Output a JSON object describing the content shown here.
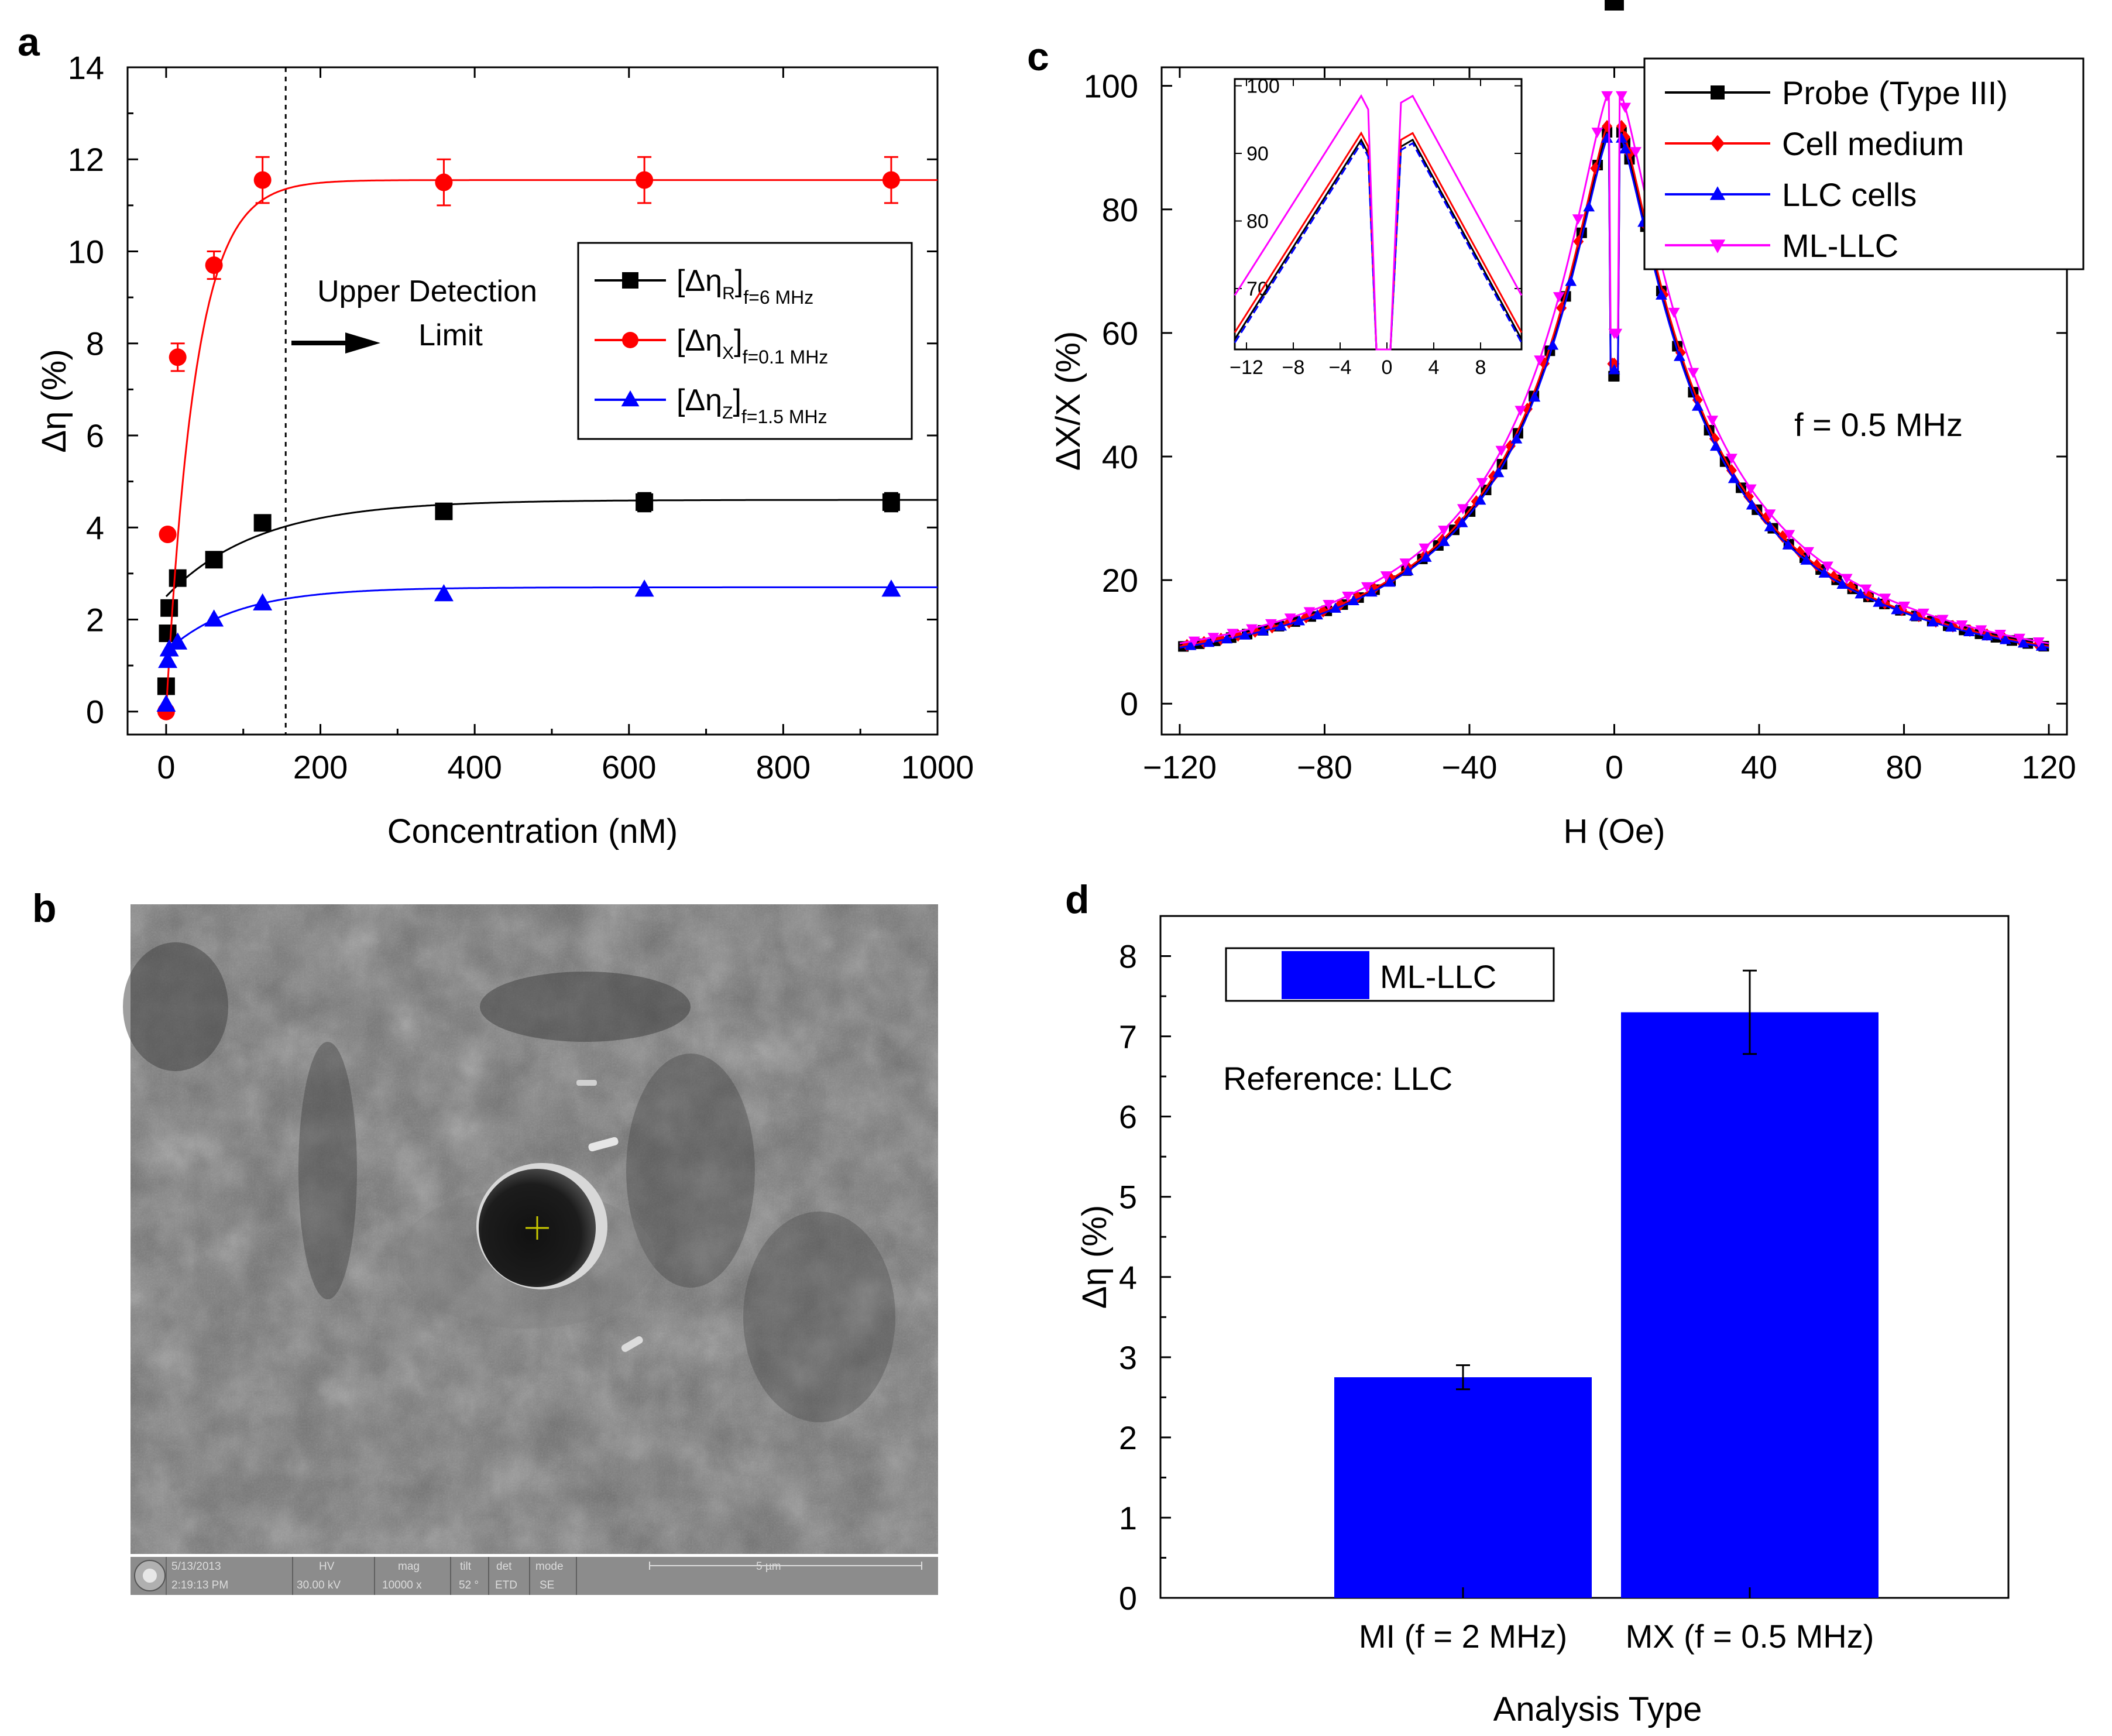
{
  "panel_labels": {
    "a": "a",
    "b": "b",
    "c": "c",
    "d": "d"
  },
  "colors": {
    "black": "#000000",
    "red": "#ff0000",
    "blue": "#0000ff",
    "magenta": "#ff00ff",
    "bar": "#0000ff"
  },
  "chart_data": [
    {
      "id": "a",
      "type": "scatter",
      "xlabel": "Concentration (nM)",
      "ylabel": "Δη (%)",
      "xlim": [
        -50,
        1000
      ],
      "ylim": [
        -0.5,
        14
      ],
      "xticks": [
        0,
        200,
        400,
        600,
        800,
        1000
      ],
      "yticks": [
        0,
        2,
        4,
        6,
        8,
        10,
        12,
        14
      ],
      "annotation": {
        "line1": "Upper Detection",
        "line2": "Limit",
        "x": 155
      },
      "legend": [
        {
          "text": "[Δη",
          "sub": "R",
          "tail": "]",
          "tailsub": "f=6 MHz"
        },
        {
          "text": "[Δη",
          "sub": "X",
          "tail": "]",
          "tailsub": "f=0.1 MHz"
        },
        {
          "text": "[Δη",
          "sub": "Z",
          "tail": "]",
          "tailsub": "f=1.5 MHz"
        }
      ],
      "series": [
        {
          "name": "[Δη_R]f=6 MHz",
          "color": "#000000",
          "marker": "square",
          "x": [
            0,
            2,
            4,
            15,
            62,
            125,
            360,
            620,
            940
          ],
          "y": [
            0.55,
            1.7,
            2.25,
            2.9,
            3.3,
            4.1,
            4.35,
            4.55,
            4.55
          ],
          "err": [
            0,
            0,
            0,
            0,
            0,
            0,
            0.15,
            0.2,
            0.2
          ],
          "fit": {
            "y0": 2.5,
            "a": 2.1,
            "k": 120
          }
        },
        {
          "name": "[Δη_X]f=0.1 MHz",
          "color": "#ff0000",
          "marker": "circle",
          "x": [
            0,
            2,
            15,
            62,
            125,
            360,
            620,
            940
          ],
          "y": [
            0,
            3.85,
            7.7,
            9.7,
            11.55,
            11.5,
            11.55,
            11.55
          ],
          "err": [
            0,
            0,
            0.3,
            0.3,
            0.5,
            0.5,
            0.5,
            0.5
          ],
          "fit": {
            "y0": 0,
            "a": 11.55,
            "k": 38
          }
        },
        {
          "name": "[Δη_Z]f=1.5 MHz",
          "color": "#0000ff",
          "marker": "triangle",
          "x": [
            0,
            2,
            4,
            15,
            62,
            125,
            360,
            620,
            940
          ],
          "y": [
            0.15,
            1.1,
            1.35,
            1.5,
            2.0,
            2.35,
            2.55,
            2.65,
            2.65
          ],
          "err": [
            0,
            0,
            0,
            0,
            0,
            0,
            0,
            0,
            0
          ],
          "fit": {
            "y0": 1.3,
            "a": 1.4,
            "k": 90
          }
        }
      ]
    },
    {
      "id": "c",
      "type": "line",
      "xlabel": "H (Oe)",
      "ylabel": "ΔX/X (%)",
      "xlim": [
        -125,
        125
      ],
      "ylim": [
        -5,
        103
      ],
      "xticks": [
        -120,
        -80,
        -40,
        0,
        40,
        80,
        120
      ],
      "yticks": [
        0,
        20,
        40,
        60,
        80,
        100
      ],
      "annotation": "f = 0.5 MHz",
      "series": [
        {
          "name": "Probe (Type III)",
          "color": "#000000",
          "marker": "square",
          "peak": 93,
          "dip": 53
        },
        {
          "name": "Cell medium",
          "color": "#ff0000",
          "marker": "diamond",
          "peak": 94,
          "dip": 55
        },
        {
          "name": "LLC cells",
          "color": "#0000ff",
          "marker": "triangle",
          "peak": 92,
          "dip": 54
        },
        {
          "name": "ML-LLC",
          "color": "#ff00ff",
          "marker": "triangle-down",
          "peak": 99,
          "dip": 60
        }
      ],
      "inset": {
        "xlim": [
          -13,
          11.5
        ],
        "ylim": [
          61,
          101
        ],
        "xticks": [
          -12,
          -8,
          -4,
          0,
          4,
          8
        ],
        "yticks": [
          70,
          80,
          90,
          100
        ],
        "series_peaks": [
          92,
          93,
          91.5,
          98.5
        ]
      }
    },
    {
      "id": "d",
      "type": "bar",
      "xlabel": "Analysis Type",
      "ylabel": "Δη (%)",
      "ylim": [
        0,
        8.5
      ],
      "yticks": [
        0,
        1,
        2,
        3,
        4,
        5,
        6,
        7,
        8
      ],
      "categories": [
        "MI (f = 2 MHz)",
        "MX (f = 0.5 MHz)"
      ],
      "values": [
        2.75,
        7.3
      ],
      "errors": [
        0.15,
        0.52
      ],
      "legend": "ML-LLC",
      "annotation": "Reference: LLC"
    }
  ],
  "sem_image": {
    "info_bar": {
      "date": "5/13/2013",
      "time": "2:19:13 PM",
      "hv_label": "HV",
      "hv": "30.00 kV",
      "mag_label": "mag",
      "mag": "10000 x",
      "tilt_label": "tilt",
      "tilt": "52 °",
      "det_label": "det",
      "det": "ETD",
      "mode_label": "mode",
      "mode": "SE",
      "scale": "5 µm"
    }
  }
}
